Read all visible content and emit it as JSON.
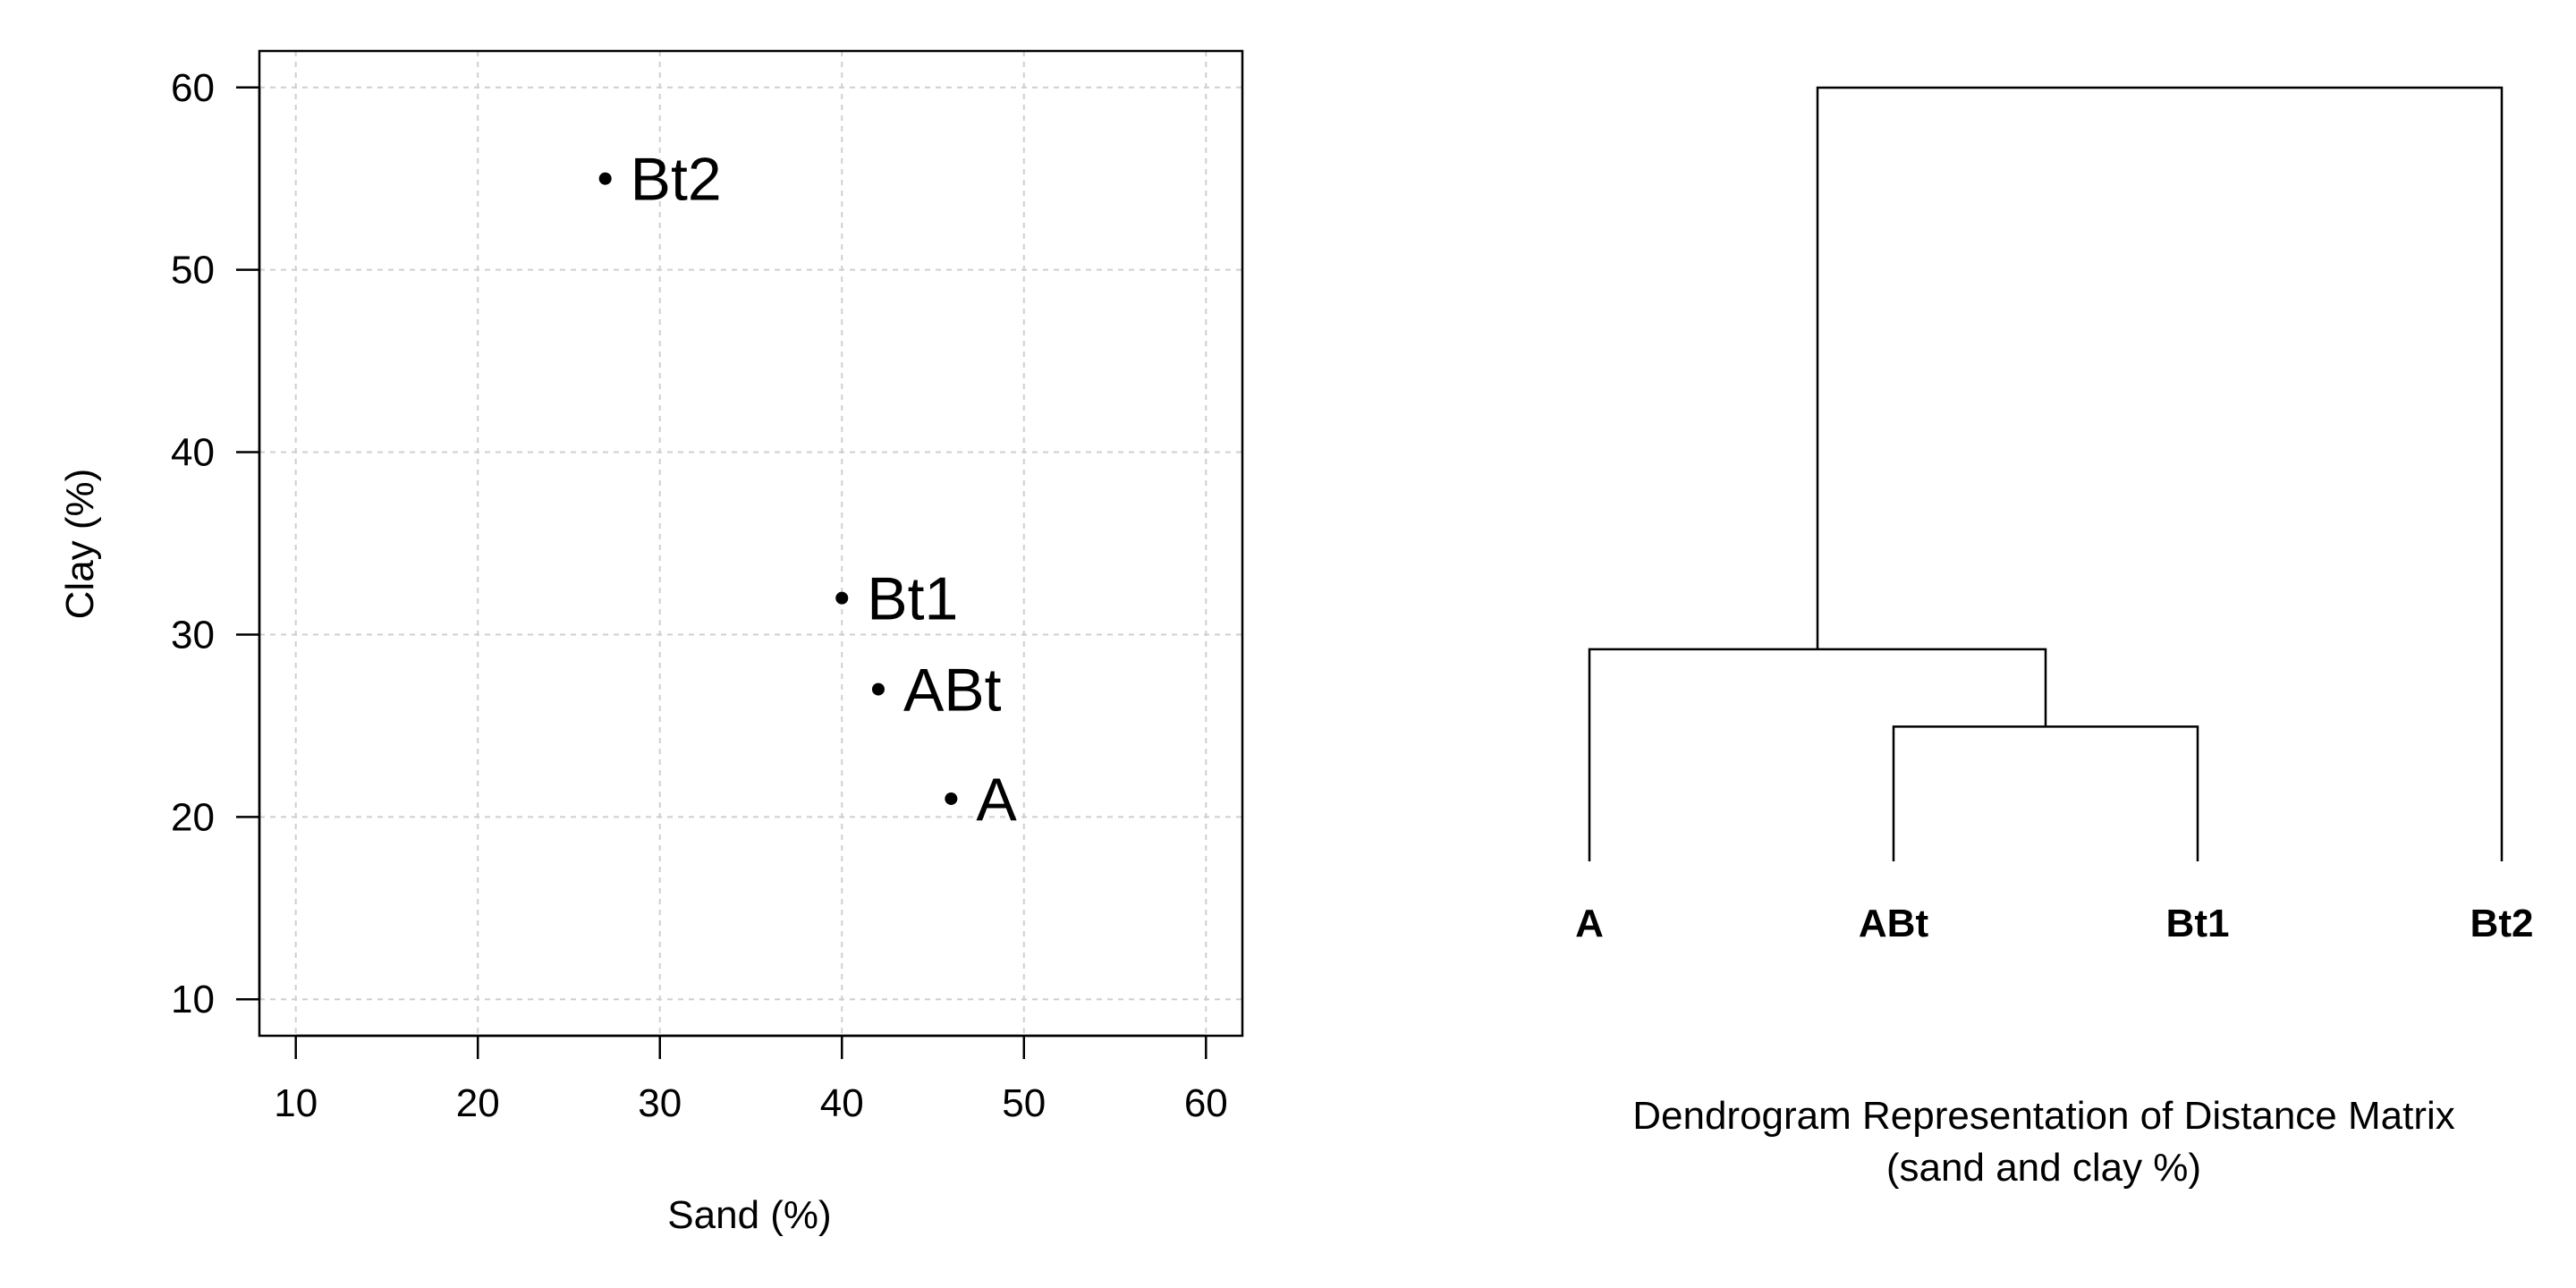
{
  "chart_data": [
    {
      "type": "scatter",
      "title": "",
      "xlabel": "Sand (%)",
      "ylabel": "Clay (%)",
      "xlim": [
        8,
        62
      ],
      "ylim": [
        8,
        62
      ],
      "xticks": [
        10,
        20,
        30,
        40,
        50,
        60
      ],
      "yticks": [
        10,
        20,
        30,
        40,
        50,
        60
      ],
      "grid": true,
      "points": [
        {
          "label": "Bt2",
          "x": 27,
          "y": 55
        },
        {
          "label": "Bt1",
          "x": 40,
          "y": 32
        },
        {
          "label": "ABt",
          "x": 42,
          "y": 27
        },
        {
          "label": "A",
          "x": 46,
          "y": 21
        }
      ]
    },
    {
      "type": "dendrogram",
      "title": "Dendrogram Representation of Distance Matrix",
      "subtitle": "(sand and clay %)",
      "leaves": [
        "A",
        "ABt",
        "Bt1",
        "Bt2"
      ],
      "merges": [
        {
          "left": "ABt",
          "right": "Bt1",
          "height": 5.4
        },
        {
          "left": "A",
          "right": "ABt+Bt1",
          "height": 8.5
        },
        {
          "left": "A+ABt+Bt1",
          "right": "Bt2",
          "height": 31
        }
      ]
    }
  ]
}
